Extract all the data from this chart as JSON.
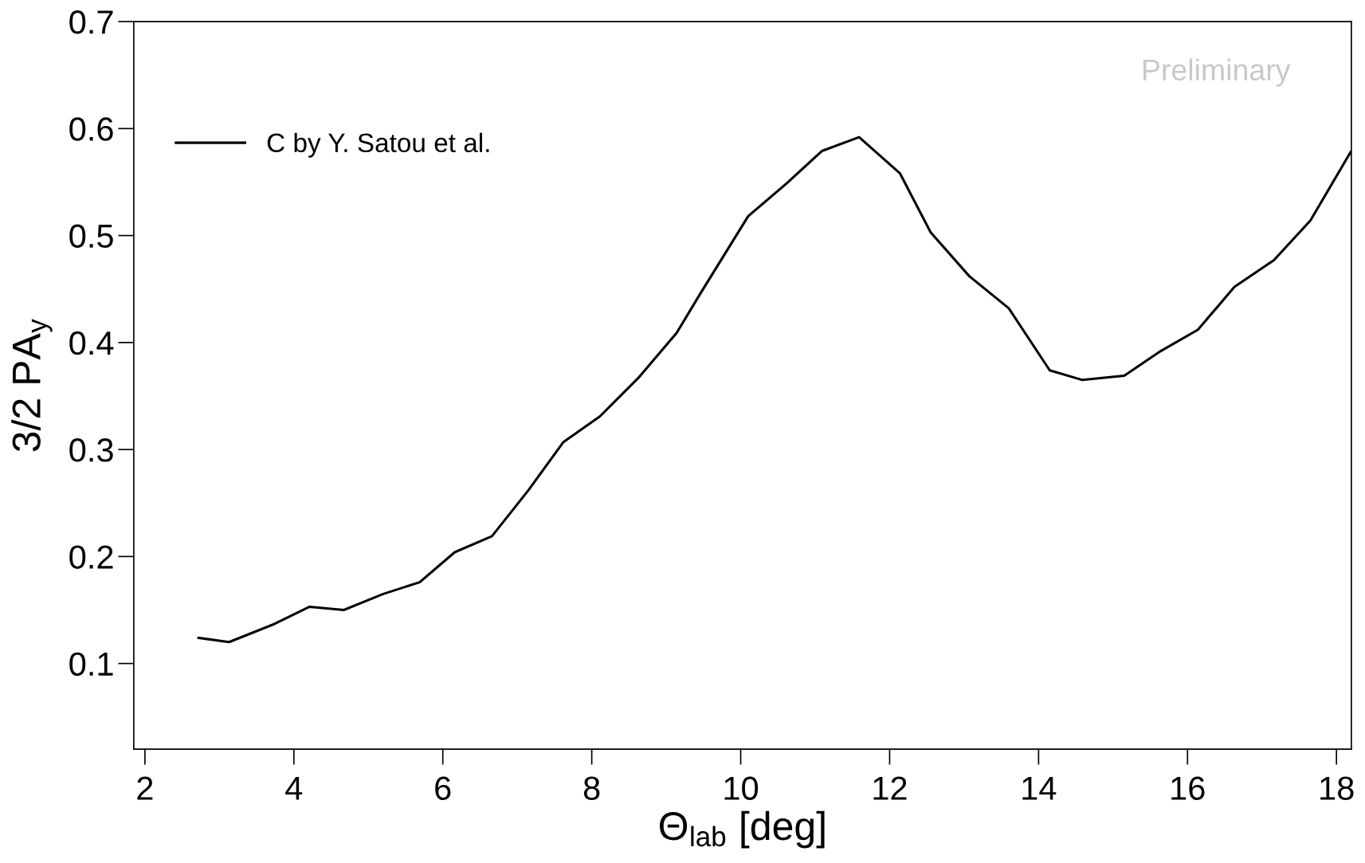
{
  "chart_data": {
    "type": "line",
    "xlabel": "Θ$_{lab}$ [deg]",
    "ylabel": "3/2 PA$_{y}$",
    "annotations": [
      "Preliminary"
    ],
    "x": [
      2.72,
      3.13,
      3.74,
      4.21,
      4.67,
      5.2,
      5.69,
      6.16,
      6.66,
      7.15,
      7.62,
      8.11,
      8.64,
      9.14,
      9.46,
      10.1,
      10.62,
      11.09,
      11.59,
      12.14,
      12.55,
      13.07,
      13.6,
      14.15,
      14.59,
      15.15,
      15.64,
      16.14,
      16.63,
      17.16,
      17.65,
      18.19
    ],
    "series": [
      {
        "name": "C by Y. Satou et al.",
        "color": "#000000",
        "values": [
          0.124,
          0.12,
          0.137,
          0.153,
          0.15,
          0.165,
          0.176,
          0.204,
          0.219,
          0.262,
          0.307,
          0.331,
          0.368,
          0.409,
          0.446,
          0.518,
          0.549,
          0.579,
          0.592,
          0.558,
          0.503,
          0.462,
          0.432,
          0.374,
          0.365,
          0.369,
          0.392,
          0.412,
          0.452,
          0.477,
          0.514,
          0.578
        ]
      }
    ],
    "xlim": [
      1.85,
      18.2
    ],
    "ylim": [
      0.02,
      0.7
    ],
    "xticks": [
      2,
      4,
      6,
      8,
      10,
      12,
      14,
      16,
      18
    ],
    "yticks": [
      0.1,
      0.2,
      0.3,
      0.4,
      0.5,
      0.6,
      0.7
    ],
    "grid": false,
    "legend": "top left",
    "marker": "none",
    "line_style": "solid"
  }
}
